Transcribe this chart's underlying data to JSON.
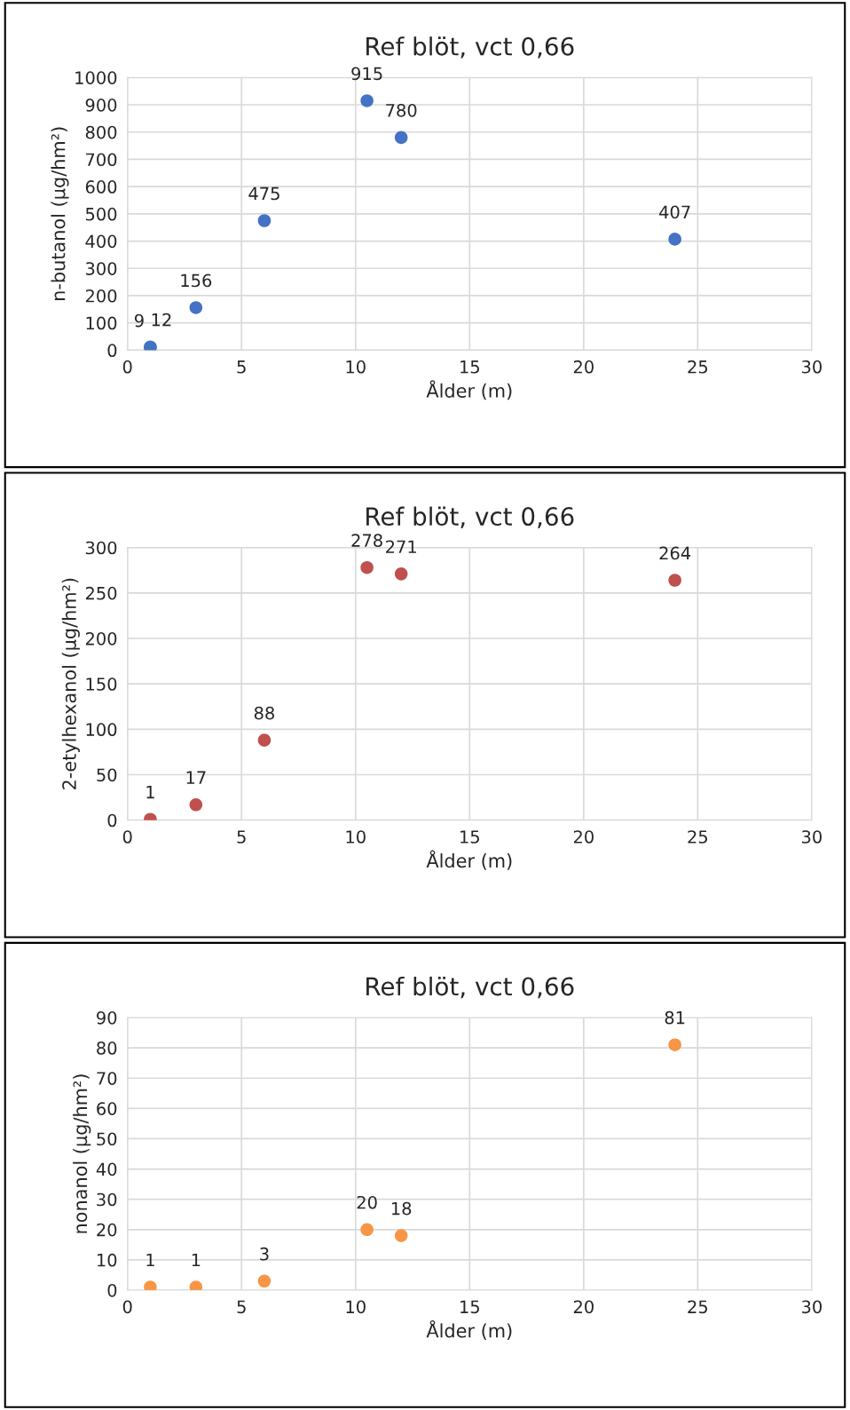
{
  "chart_data": [
    {
      "type": "scatter",
      "title": "Ref blöt, vct 0,66",
      "xlabel": "Ålder (m)",
      "ylabel": "n-butanol (µg/hm²)",
      "x": [
        1,
        1,
        3,
        6,
        10.5,
        12,
        24
      ],
      "series": [
        {
          "color": "#4472c4",
          "values": [
            9,
            12,
            156,
            475,
            915,
            780,
            407
          ]
        }
      ],
      "xlim": [
        0,
        30
      ],
      "xticks": [
        0,
        5,
        10,
        15,
        20,
        25,
        30
      ],
      "ylim": [
        0,
        1000
      ],
      "yticks": [
        0,
        100,
        200,
        300,
        400,
        500,
        600,
        700,
        800,
        900,
        1000
      ],
      "grid": true,
      "data_labels": true,
      "marker": "circle",
      "legend": false
    },
    {
      "type": "scatter",
      "title": "Ref blöt, vct 0,66",
      "xlabel": "Ålder (m)",
      "ylabel": "2-etylhexanol (µg/hm²)",
      "x": [
        1,
        3,
        6,
        10.5,
        12,
        24
      ],
      "series": [
        {
          "color": "#c0504d",
          "values": [
            1,
            17,
            88,
            278,
            271,
            264
          ]
        }
      ],
      "xlim": [
        0,
        30
      ],
      "xticks": [
        0,
        5,
        10,
        15,
        20,
        25,
        30
      ],
      "ylim": [
        0,
        300
      ],
      "yticks": [
        0,
        50,
        100,
        150,
        200,
        250,
        300
      ],
      "grid": true,
      "data_labels": true,
      "marker": "circle",
      "legend": false
    },
    {
      "type": "scatter",
      "title": "Ref blöt, vct 0,66",
      "xlabel": "Ålder (m)",
      "ylabel": "nonanol (µg/hm²)",
      "x": [
        1,
        3,
        6,
        10.5,
        12,
        24
      ],
      "series": [
        {
          "color": "#f79646",
          "values": [
            1,
            1,
            3,
            20,
            18,
            81
          ]
        }
      ],
      "xlim": [
        0,
        30
      ],
      "xticks": [
        0,
        5,
        10,
        15,
        20,
        25,
        30
      ],
      "ylim": [
        0,
        90
      ],
      "yticks": [
        0,
        10,
        20,
        30,
        40,
        50,
        60,
        70,
        80,
        90
      ],
      "grid": true,
      "data_labels": true,
      "marker": "circle",
      "legend": false
    }
  ]
}
